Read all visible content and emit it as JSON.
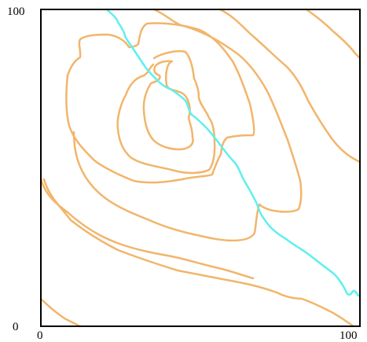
{
  "map": {
    "axes": {
      "x_min_label": "0",
      "x_max_label": "100",
      "y_min_label": "0",
      "y_max_label": "100"
    },
    "colors": {
      "contour": "#f2b56b",
      "stream": "#5ef0ee",
      "frame": "#000000",
      "background": "#ffffff"
    },
    "features": {
      "contour_lines": 7,
      "streams": 1
    }
  }
}
